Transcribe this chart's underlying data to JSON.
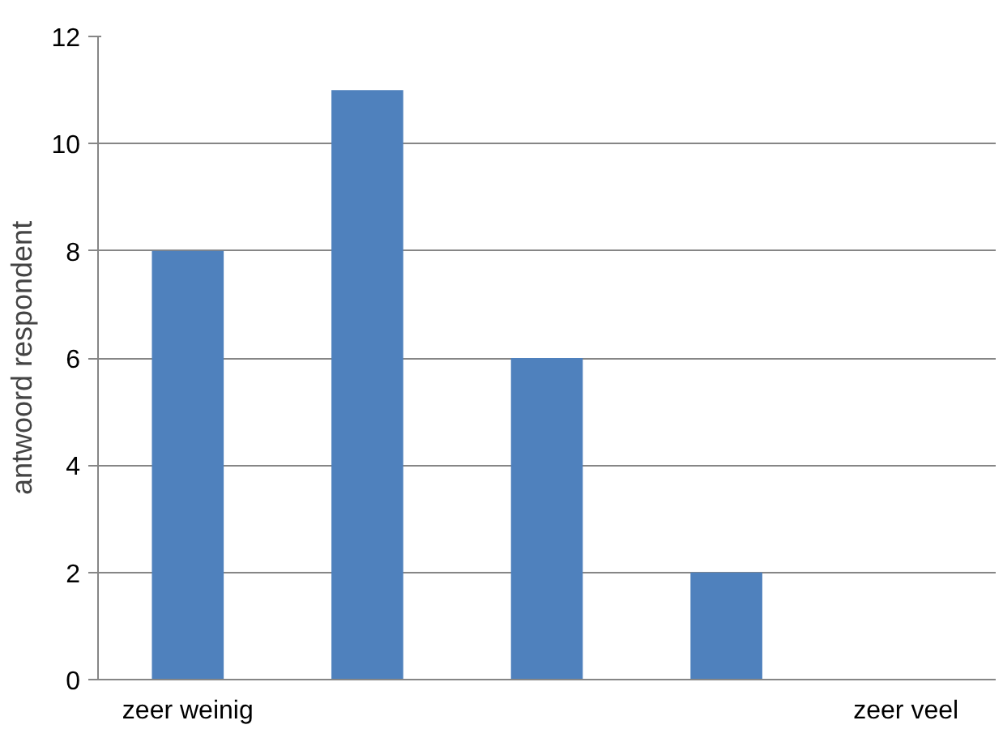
{
  "chart_data": {
    "type": "bar",
    "ylabel": "antwoord respondent",
    "categories": [
      "zeer weinig",
      null,
      null,
      null,
      "zeer veel"
    ],
    "values": [
      8,
      11,
      6,
      2,
      0
    ],
    "color": "#4f81bd",
    "ylim": [
      0,
      12
    ],
    "yticks": [
      0,
      2,
      4,
      6,
      8,
      10,
      12
    ],
    "grid": "y"
  }
}
